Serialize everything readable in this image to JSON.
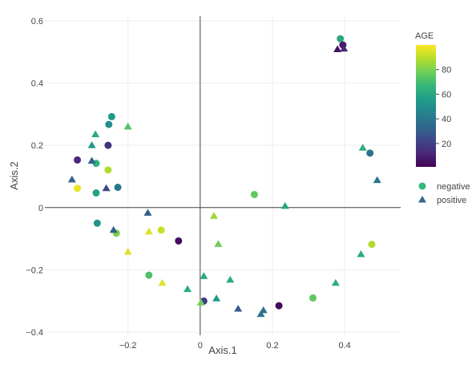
{
  "chart_data": {
    "type": "scatter",
    "xlabel": "Axis.1",
    "ylabel": "Axis.2",
    "xlim": [
      -0.43,
      0.555
    ],
    "ylim": [
      -0.41,
      0.615
    ],
    "x_ticks": [
      -0.2,
      0,
      0.2,
      0.4
    ],
    "x_tick_labels": [
      "−0.2",
      "0",
      "0.2",
      "0.4"
    ],
    "y_ticks": [
      -0.4,
      -0.2,
      0,
      0.2,
      0.4,
      0.6
    ],
    "y_tick_labels": [
      "−0.4",
      "−0.2",
      "0",
      "0.2",
      "0.4",
      "0.6"
    ],
    "grid": true,
    "zero_lines": true,
    "color_scale": {
      "title": "AGE",
      "colorscale": "viridis",
      "range": [
        1,
        100
      ],
      "ticks": [
        20,
        40,
        60,
        80
      ],
      "tick_labels": [
        "20",
        "40",
        "60",
        "80"
      ],
      "stops": [
        "#440154",
        "#482878",
        "#3e4989",
        "#31688e",
        "#26828e",
        "#1f9e89",
        "#35b779",
        "#6ece58",
        "#b5de2b",
        "#fde725"
      ]
    },
    "legend_position": "right",
    "series": [
      {
        "name": "negative",
        "marker": "circle",
        "points": [
          {
            "x": 0.388,
            "y": 0.542,
            "age": 60
          },
          {
            "x": 0.395,
            "y": 0.522,
            "age": 8
          },
          {
            "x": -0.245,
            "y": 0.292,
            "age": 55
          },
          {
            "x": -0.253,
            "y": 0.267,
            "age": 50
          },
          {
            "x": -0.255,
            "y": 0.2,
            "age": 15
          },
          {
            "x": -0.34,
            "y": 0.153,
            "age": 12
          },
          {
            "x": -0.288,
            "y": 0.142,
            "age": 65
          },
          {
            "x": -0.255,
            "y": 0.121,
            "age": 88
          },
          {
            "x": -0.288,
            "y": 0.047,
            "age": 58
          },
          {
            "x": -0.228,
            "y": 0.065,
            "age": 40
          },
          {
            "x": -0.34,
            "y": 0.062,
            "age": 97
          },
          {
            "x": 0.47,
            "y": 0.175,
            "age": 38
          },
          {
            "x": 0.15,
            "y": 0.042,
            "age": 75
          },
          {
            "x": -0.285,
            "y": -0.05,
            "age": 52
          },
          {
            "x": -0.232,
            "y": -0.082,
            "age": 80
          },
          {
            "x": -0.108,
            "y": -0.072,
            "age": 92
          },
          {
            "x": -0.06,
            "y": -0.107,
            "age": 3
          },
          {
            "x": 0.475,
            "y": -0.118,
            "age": 88
          },
          {
            "x": -0.142,
            "y": -0.217,
            "age": 72
          },
          {
            "x": 0.01,
            "y": -0.3,
            "age": 18
          },
          {
            "x": 0.218,
            "y": -0.315,
            "age": 3
          },
          {
            "x": 0.312,
            "y": -0.29,
            "age": 75
          }
        ]
      },
      {
        "name": "positive",
        "marker": "triangle-up",
        "points": [
          {
            "x": 0.38,
            "y": 0.508,
            "age": 5
          },
          {
            "x": 0.398,
            "y": 0.51,
            "age": 12
          },
          {
            "x": -0.29,
            "y": 0.235,
            "age": 62
          },
          {
            "x": -0.2,
            "y": 0.26,
            "age": 72
          },
          {
            "x": -0.3,
            "y": 0.2,
            "age": 55
          },
          {
            "x": -0.3,
            "y": 0.15,
            "age": 32
          },
          {
            "x": -0.355,
            "y": 0.09,
            "age": 30
          },
          {
            "x": -0.26,
            "y": 0.062,
            "age": 22
          },
          {
            "x": 0.45,
            "y": 0.192,
            "age": 62
          },
          {
            "x": 0.49,
            "y": 0.088,
            "age": 40
          },
          {
            "x": 0.235,
            "y": 0.005,
            "age": 60
          },
          {
            "x": -0.145,
            "y": -0.017,
            "age": 30
          },
          {
            "x": 0.038,
            "y": -0.027,
            "age": 85
          },
          {
            "x": -0.24,
            "y": -0.072,
            "age": 32
          },
          {
            "x": -0.142,
            "y": -0.077,
            "age": 95
          },
          {
            "x": 0.05,
            "y": -0.117,
            "age": 78
          },
          {
            "x": -0.2,
            "y": -0.142,
            "age": 95
          },
          {
            "x": 0.445,
            "y": -0.15,
            "age": 62
          },
          {
            "x": 0.01,
            "y": -0.22,
            "age": 60
          },
          {
            "x": 0.083,
            "y": -0.232,
            "age": 62
          },
          {
            "x": 0.375,
            "y": -0.242,
            "age": 62
          },
          {
            "x": -0.105,
            "y": -0.242,
            "age": 95
          },
          {
            "x": -0.035,
            "y": -0.262,
            "age": 62
          },
          {
            "x": 0.045,
            "y": -0.292,
            "age": 55
          },
          {
            "x": 0.002,
            "y": -0.305,
            "age": 78
          },
          {
            "x": 0.105,
            "y": -0.325,
            "age": 30
          },
          {
            "x": 0.175,
            "y": -0.33,
            "age": 38
          },
          {
            "x": 0.168,
            "y": -0.342,
            "age": 40
          }
        ]
      }
    ]
  }
}
